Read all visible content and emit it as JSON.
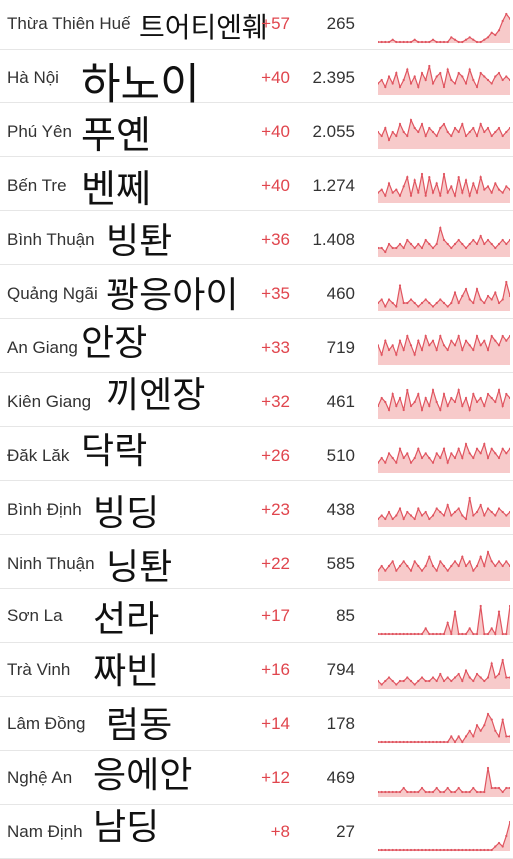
{
  "rows": [
    {
      "name": "Thừa Thiên Huế",
      "korean": "트어티엔훼",
      "delta": "+57",
      "total": "265",
      "spark": [
        0,
        0,
        0,
        0,
        1,
        0,
        0,
        0,
        0,
        0,
        1,
        0,
        0,
        0,
        0,
        1,
        0,
        0,
        0,
        0,
        2,
        1,
        0,
        0,
        1,
        2,
        1,
        0,
        0,
        1,
        2,
        4,
        3,
        5,
        9,
        12,
        10
      ]
    },
    {
      "name": "Hà Nội",
      "korean": "하노이",
      "delta": "+40",
      "total": "2.395",
      "spark": [
        3,
        4,
        2,
        5,
        3,
        6,
        2,
        4,
        7,
        3,
        5,
        2,
        6,
        4,
        8,
        3,
        5,
        6,
        2,
        7,
        4,
        3,
        6,
        5,
        3,
        7,
        4,
        2,
        6,
        5,
        4,
        3,
        5,
        6,
        4,
        5,
        4
      ]
    },
    {
      "name": "Phú Yên",
      "korean": "푸옌",
      "delta": "+40",
      "total": "2.055",
      "spark": [
        4,
        3,
        5,
        2,
        4,
        3,
        6,
        4,
        3,
        7,
        5,
        4,
        6,
        3,
        5,
        4,
        3,
        5,
        6,
        4,
        3,
        5,
        4,
        6,
        3,
        4,
        5,
        3,
        6,
        4,
        5,
        3,
        4,
        5,
        3,
        4,
        5
      ]
    },
    {
      "name": "Bến Tre",
      "korean": "벤쩨",
      "delta": "+40",
      "total": "1.274",
      "spark": [
        3,
        4,
        2,
        6,
        3,
        4,
        2,
        5,
        8,
        2,
        7,
        3,
        9,
        2,
        8,
        3,
        6,
        2,
        9,
        3,
        5,
        2,
        8,
        3,
        7,
        2,
        6,
        3,
        8,
        4,
        5,
        3,
        6,
        4,
        3,
        5,
        4
      ]
    },
    {
      "name": "Bình Thuận",
      "korean": "빙퇀",
      "delta": "+36",
      "total": "1.408",
      "spark": [
        2,
        2,
        1,
        3,
        2,
        2,
        3,
        2,
        4,
        3,
        2,
        3,
        2,
        4,
        3,
        2,
        3,
        7,
        4,
        3,
        2,
        3,
        4,
        3,
        2,
        3,
        4,
        3,
        5,
        3,
        4,
        3,
        2,
        3,
        4,
        3,
        4
      ]
    },
    {
      "name": "Quảng Ngãi",
      "korean": "꽝응아이",
      "delta": "+35",
      "total": "460",
      "spark": [
        2,
        3,
        1,
        3,
        2,
        1,
        7,
        2,
        2,
        3,
        2,
        1,
        2,
        3,
        2,
        1,
        2,
        3,
        2,
        1,
        2,
        5,
        2,
        4,
        6,
        3,
        2,
        6,
        3,
        2,
        4,
        3,
        5,
        2,
        3,
        8,
        4
      ]
    },
    {
      "name": "An Giang",
      "korean": "안장",
      "delta": "+33",
      "total": "719",
      "spark": [
        4,
        2,
        5,
        3,
        4,
        2,
        5,
        3,
        6,
        4,
        2,
        5,
        3,
        6,
        4,
        5,
        3,
        6,
        4,
        3,
        5,
        4,
        6,
        3,
        5,
        4,
        3,
        6,
        4,
        5,
        3,
        6,
        5,
        4,
        6,
        5,
        6
      ]
    },
    {
      "name": "Kiên Giang",
      "korean": "끼엔장",
      "delta": "+32",
      "total": "461",
      "spark": [
        3,
        5,
        4,
        2,
        6,
        3,
        5,
        2,
        7,
        3,
        4,
        6,
        2,
        5,
        3,
        7,
        4,
        2,
        6,
        3,
        5,
        4,
        7,
        3,
        5,
        2,
        6,
        4,
        5,
        3,
        6,
        5,
        4,
        7,
        3,
        6,
        5
      ]
    },
    {
      "name": "Đăk Lăk",
      "korean": "닥락",
      "delta": "+26",
      "total": "510",
      "spark": [
        2,
        3,
        2,
        4,
        3,
        2,
        5,
        3,
        4,
        2,
        3,
        5,
        3,
        4,
        3,
        2,
        4,
        3,
        5,
        2,
        4,
        3,
        5,
        3,
        6,
        4,
        3,
        5,
        4,
        6,
        3,
        5,
        4,
        3,
        5,
        4,
        5
      ]
    },
    {
      "name": "Bình Định",
      "korean": "빙딩",
      "delta": "+23",
      "total": "438",
      "spark": [
        2,
        3,
        2,
        4,
        2,
        3,
        5,
        2,
        4,
        3,
        2,
        5,
        3,
        4,
        2,
        3,
        5,
        4,
        3,
        6,
        3,
        4,
        5,
        3,
        2,
        8,
        3,
        4,
        6,
        3,
        5,
        4,
        3,
        5,
        4,
        3,
        4
      ]
    },
    {
      "name": "Ninh Thuận",
      "korean": "닝퇀",
      "delta": "+22",
      "total": "585",
      "spark": [
        2,
        3,
        2,
        3,
        4,
        2,
        3,
        4,
        3,
        2,
        4,
        3,
        2,
        3,
        5,
        3,
        2,
        4,
        3,
        2,
        3,
        4,
        3,
        5,
        3,
        4,
        2,
        3,
        5,
        3,
        6,
        4,
        3,
        4,
        3,
        4,
        3
      ]
    },
    {
      "name": "Sơn La",
      "korean": "선라",
      "delta": "+17",
      "total": "85",
      "spark": [
        0,
        0,
        0,
        0,
        0,
        0,
        0,
        0,
        0,
        0,
        0,
        0,
        0,
        1,
        0,
        0,
        0,
        0,
        0,
        2,
        0,
        4,
        0,
        0,
        0,
        1,
        0,
        0,
        5,
        0,
        0,
        1,
        0,
        4,
        0,
        0,
        5
      ]
    },
    {
      "name": "Trà Vinh",
      "korean": "짜빈",
      "delta": "+16",
      "total": "794",
      "spark": [
        2,
        1,
        2,
        3,
        2,
        1,
        2,
        2,
        3,
        2,
        1,
        2,
        3,
        2,
        2,
        3,
        2,
        4,
        2,
        3,
        2,
        3,
        4,
        2,
        5,
        3,
        2,
        4,
        3,
        2,
        3,
        7,
        3,
        4,
        8,
        3,
        3
      ]
    },
    {
      "name": "Lâm Đồng",
      "korean": "럼동",
      "delta": "+14",
      "total": "178",
      "spark": [
        0,
        0,
        0,
        0,
        0,
        0,
        0,
        0,
        0,
        0,
        0,
        0,
        0,
        0,
        0,
        0,
        0,
        0,
        0,
        0,
        1,
        0,
        1,
        0,
        1,
        2,
        1,
        3,
        2,
        3,
        5,
        4,
        2,
        1,
        4,
        1,
        1
      ]
    },
    {
      "name": "Nghệ An",
      "korean": "응에안",
      "delta": "+12",
      "total": "469",
      "spark": [
        1,
        1,
        1,
        1,
        1,
        1,
        1,
        2,
        1,
        1,
        1,
        1,
        2,
        1,
        1,
        1,
        2,
        1,
        1,
        2,
        1,
        1,
        2,
        1,
        1,
        1,
        2,
        1,
        1,
        1,
        7,
        2,
        2,
        2,
        1,
        2,
        2
      ]
    },
    {
      "name": "Nam Định",
      "korean": "남딩",
      "delta": "+8",
      "total": "27",
      "spark": [
        0,
        0,
        0,
        0,
        0,
        0,
        0,
        0,
        0,
        0,
        0,
        0,
        0,
        0,
        0,
        0,
        0,
        0,
        0,
        0,
        0,
        0,
        0,
        0,
        0,
        0,
        0,
        0,
        0,
        0,
        0,
        0,
        1,
        2,
        1,
        4,
        8
      ]
    }
  ]
}
